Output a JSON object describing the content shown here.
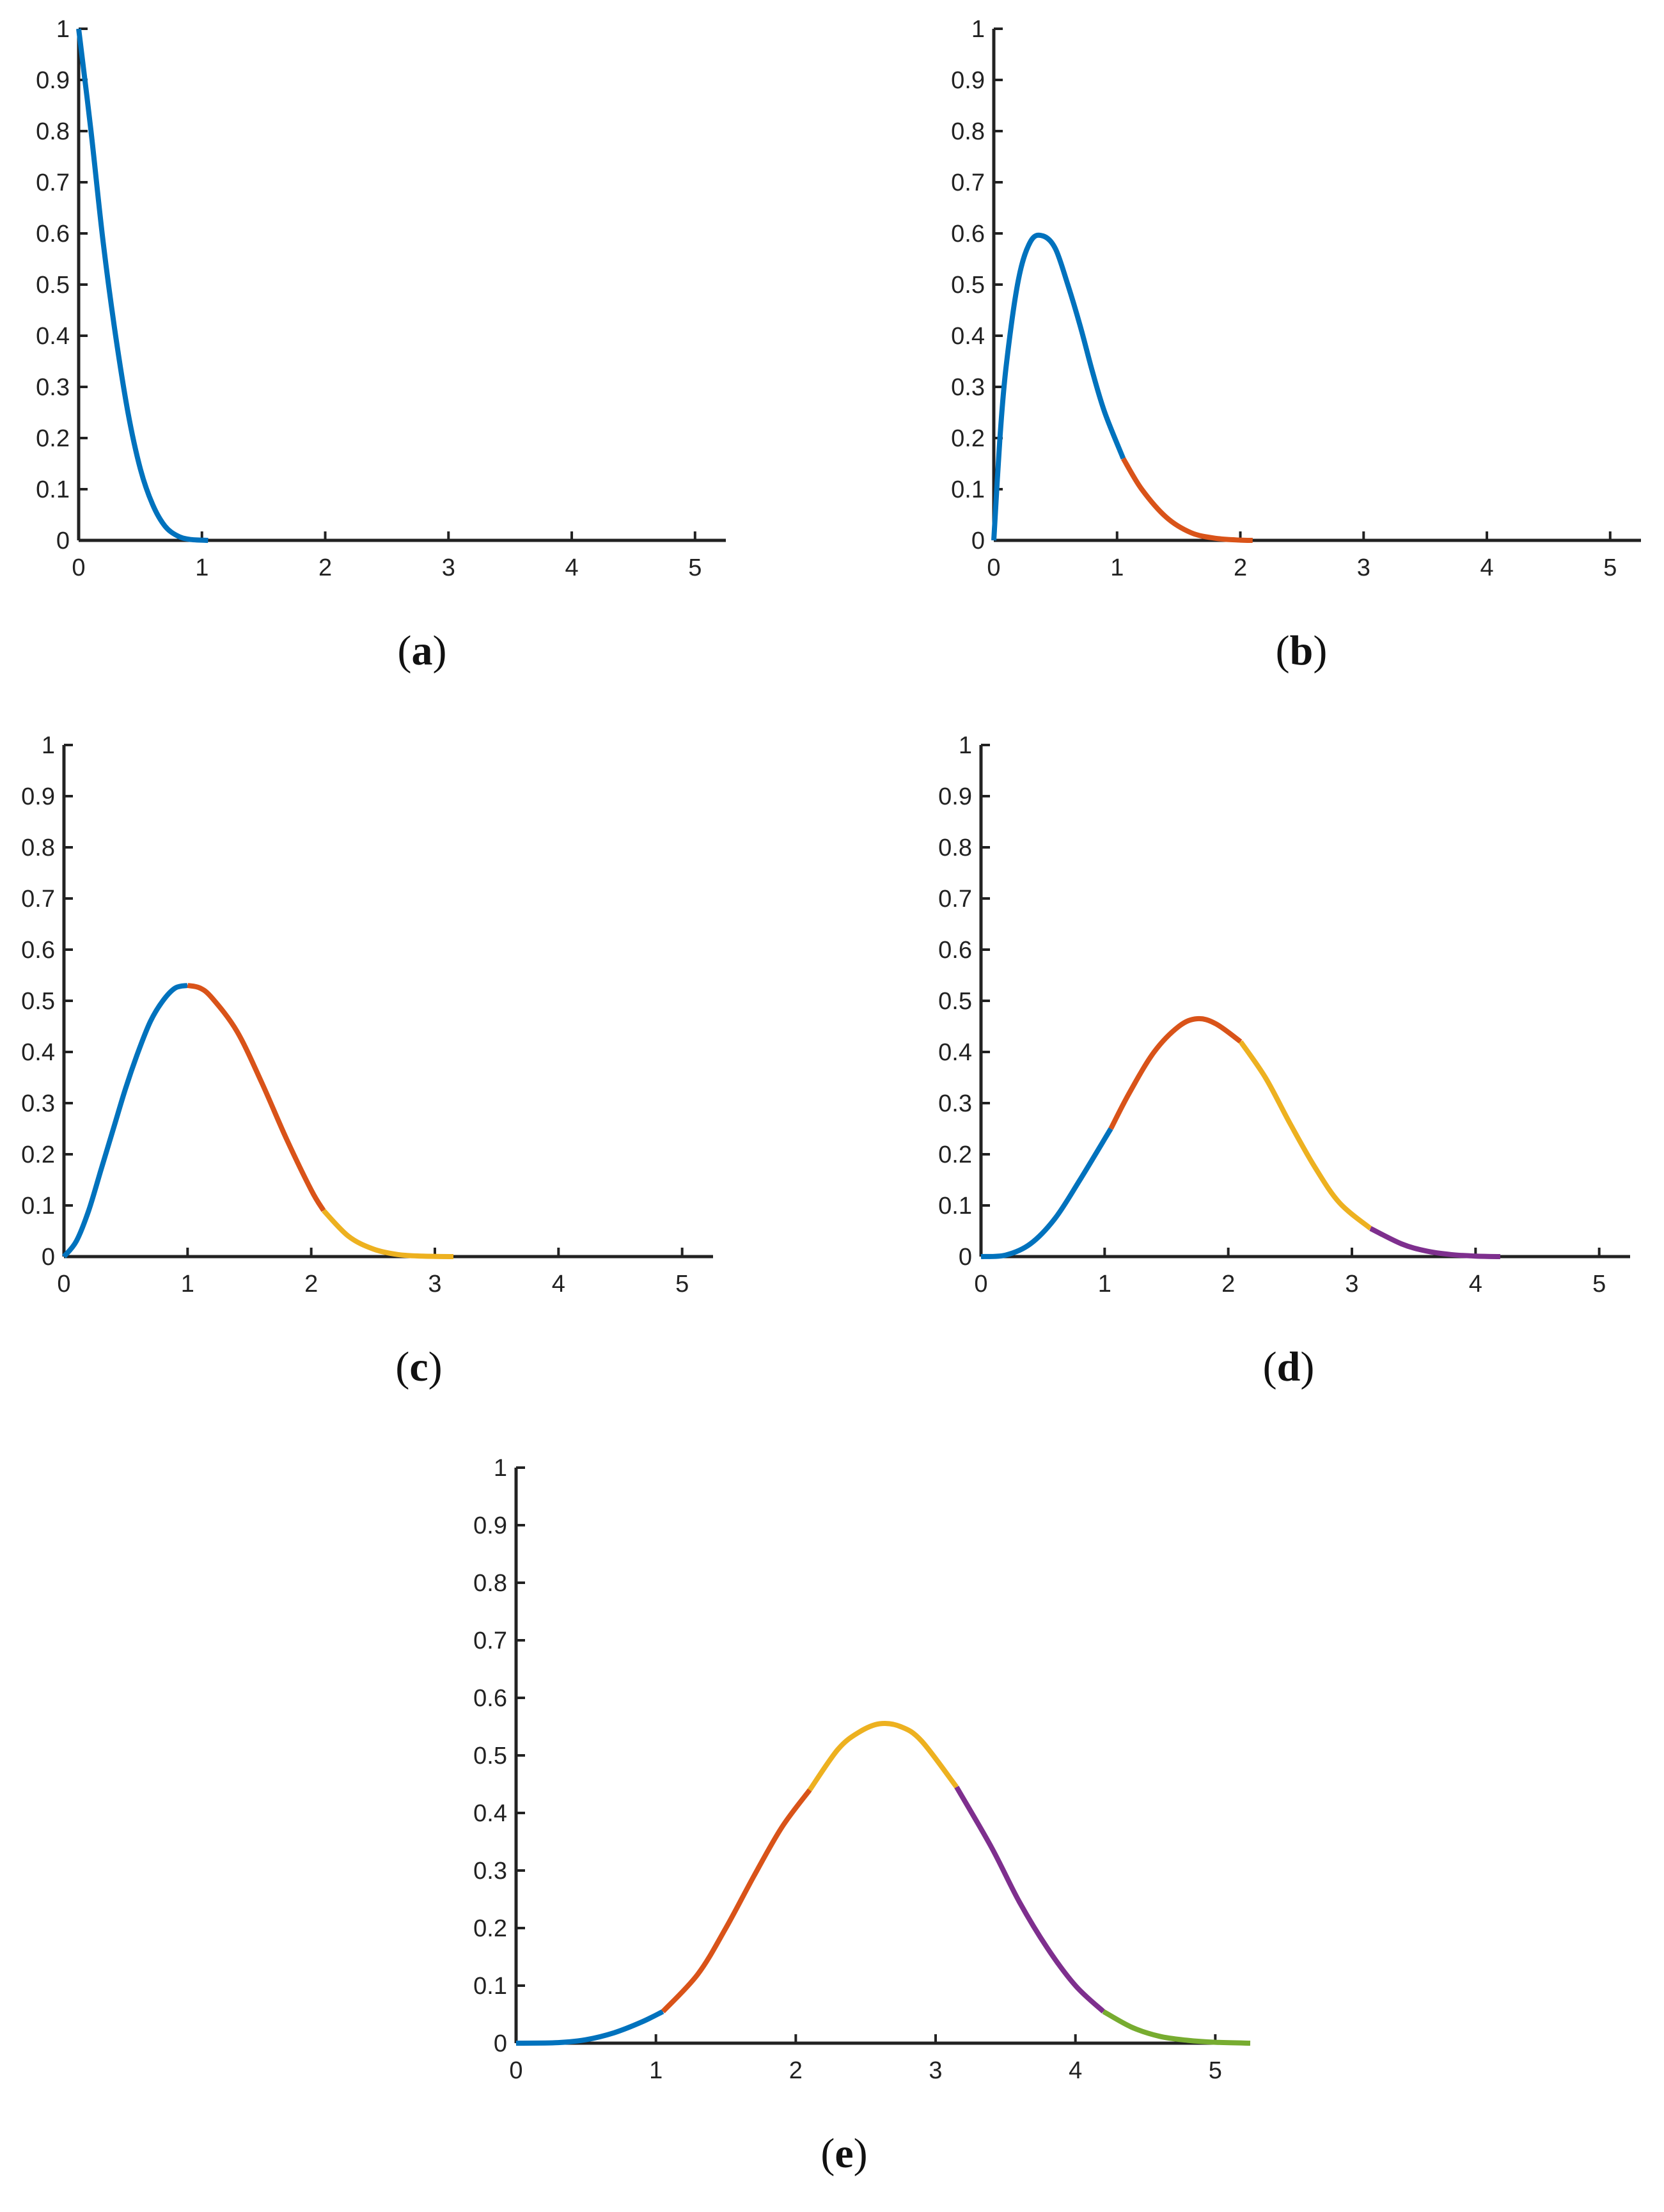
{
  "colors": {
    "blue": "#0072BD",
    "orange": "#D95319",
    "yellow": "#EDB120",
    "purple": "#7E2F8E",
    "green": "#77AC30"
  },
  "chart_data": [
    {
      "type": "line",
      "panel": "a",
      "caption_letter": "a",
      "xlim": [
        0,
        5.25
      ],
      "ylim": [
        0,
        1
      ],
      "xticks": [
        "0",
        "1",
        "2",
        "3",
        "4",
        "5"
      ],
      "yticks": [
        "0",
        "0.1",
        "0.2",
        "0.3",
        "0.4",
        "0.5",
        "0.6",
        "0.7",
        "0.8",
        "0.9",
        "1"
      ],
      "series": [
        {
          "color": "blue",
          "x": [
            0,
            0.1,
            0.2,
            0.3,
            0.4,
            0.5,
            0.6,
            0.7,
            0.8,
            0.9,
            1.05
          ],
          "y": [
            1.0,
            0.8,
            0.58,
            0.4,
            0.25,
            0.14,
            0.07,
            0.028,
            0.009,
            0.002,
            0
          ]
        }
      ]
    },
    {
      "type": "line",
      "panel": "b",
      "caption_letter": "b",
      "xlim": [
        0,
        5.25
      ],
      "ylim": [
        0,
        1
      ],
      "xticks": [
        "0",
        "1",
        "2",
        "3",
        "4",
        "5"
      ],
      "yticks": [
        "0",
        "0.1",
        "0.2",
        "0.3",
        "0.4",
        "0.5",
        "0.6",
        "0.7",
        "0.8",
        "0.9",
        "1"
      ],
      "series": [
        {
          "color": "blue",
          "x": [
            0,
            0.05,
            0.1,
            0.2,
            0.3,
            0.4,
            0.5,
            0.6,
            0.7,
            0.8,
            0.9,
            1.05
          ],
          "y": [
            0,
            0.2,
            0.34,
            0.51,
            0.585,
            0.595,
            0.57,
            0.5,
            0.42,
            0.33,
            0.25,
            0.16
          ]
        },
        {
          "color": "orange",
          "x": [
            1.05,
            1.2,
            1.4,
            1.6,
            1.8,
            2.0,
            2.1
          ],
          "y": [
            0.16,
            0.1,
            0.045,
            0.015,
            0.004,
            0.0005,
            0
          ]
        }
      ]
    },
    {
      "type": "line",
      "panel": "c",
      "caption_letter": "c",
      "xlim": [
        0,
        5.25
      ],
      "ylim": [
        0,
        1
      ],
      "xticks": [
        "0",
        "1",
        "2",
        "3",
        "4",
        "5"
      ],
      "yticks": [
        "0",
        "0.1",
        "0.2",
        "0.3",
        "0.4",
        "0.5",
        "0.6",
        "0.7",
        "0.8",
        "0.9",
        "1"
      ],
      "series": [
        {
          "color": "blue",
          "x": [
            0,
            0.1,
            0.2,
            0.3,
            0.4,
            0.5,
            0.6,
            0.7,
            0.8,
            0.9,
            1.0
          ],
          "y": [
            0,
            0.03,
            0.09,
            0.17,
            0.25,
            0.33,
            0.4,
            0.46,
            0.5,
            0.525,
            0.53
          ]
        },
        {
          "color": "orange",
          "x": [
            1.0,
            1.1,
            1.2,
            1.4,
            1.6,
            1.8,
            2.0,
            2.1
          ],
          "y": [
            0.53,
            0.525,
            0.505,
            0.44,
            0.34,
            0.23,
            0.13,
            0.09
          ]
        },
        {
          "color": "yellow",
          "x": [
            2.1,
            2.3,
            2.5,
            2.7,
            2.9,
            3.15
          ],
          "y": [
            0.09,
            0.04,
            0.015,
            0.004,
            0.001,
            0
          ]
        }
      ]
    },
    {
      "type": "line",
      "panel": "d",
      "caption_letter": "d",
      "xlim": [
        0,
        5.25
      ],
      "ylim": [
        0,
        1
      ],
      "xticks": [
        "0",
        "1",
        "2",
        "3",
        "4",
        "5"
      ],
      "yticks": [
        "0",
        "0.1",
        "0.2",
        "0.3",
        "0.4",
        "0.5",
        "0.6",
        "0.7",
        "0.8",
        "0.9",
        "1"
      ],
      "series": [
        {
          "color": "blue",
          "x": [
            0,
            0.2,
            0.4,
            0.6,
            0.8,
            1.05
          ],
          "y": [
            0,
            0.003,
            0.025,
            0.075,
            0.15,
            0.25
          ]
        },
        {
          "color": "orange",
          "x": [
            1.05,
            1.2,
            1.4,
            1.6,
            1.75,
            1.9,
            2.1
          ],
          "y": [
            0.25,
            0.32,
            0.4,
            0.45,
            0.465,
            0.455,
            0.42
          ]
        },
        {
          "color": "yellow",
          "x": [
            2.1,
            2.3,
            2.5,
            2.7,
            2.9,
            3.15
          ],
          "y": [
            0.42,
            0.35,
            0.26,
            0.175,
            0.105,
            0.055
          ]
        },
        {
          "color": "purple",
          "x": [
            3.15,
            3.4,
            3.6,
            3.8,
            4.0,
            4.2
          ],
          "y": [
            0.055,
            0.025,
            0.011,
            0.004,
            0.001,
            0
          ]
        }
      ]
    },
    {
      "type": "line",
      "panel": "e",
      "caption_letter": "e",
      "xlim": [
        0,
        5.25
      ],
      "ylim": [
        0,
        1
      ],
      "xticks": [
        "0",
        "1",
        "2",
        "3",
        "4",
        "5"
      ],
      "yticks": [
        "0",
        "0.1",
        "0.2",
        "0.3",
        "0.4",
        "0.5",
        "0.6",
        "0.7",
        "0.8",
        "0.9",
        "1"
      ],
      "series": [
        {
          "color": "blue",
          "x": [
            0,
            0.3,
            0.5,
            0.7,
            0.9,
            1.05
          ],
          "y": [
            0,
            0.001,
            0.006,
            0.018,
            0.037,
            0.055
          ]
        },
        {
          "color": "orange",
          "x": [
            1.05,
            1.3,
            1.5,
            1.7,
            1.9,
            2.1
          ],
          "y": [
            0.055,
            0.12,
            0.2,
            0.29,
            0.375,
            0.44
          ]
        },
        {
          "color": "yellow",
          "x": [
            2.1,
            2.3,
            2.45,
            2.6,
            2.75,
            2.9,
            3.15
          ],
          "y": [
            0.44,
            0.51,
            0.54,
            0.555,
            0.55,
            0.525,
            0.445
          ]
        },
        {
          "color": "purple",
          "x": [
            3.15,
            3.4,
            3.6,
            3.8,
            4.0,
            4.2
          ],
          "y": [
            0.445,
            0.34,
            0.245,
            0.165,
            0.1,
            0.055
          ]
        },
        {
          "color": "green",
          "x": [
            4.2,
            4.4,
            4.6,
            4.8,
            5.0,
            5.25
          ],
          "y": [
            0.055,
            0.028,
            0.012,
            0.005,
            0.0015,
            0
          ]
        }
      ]
    }
  ]
}
